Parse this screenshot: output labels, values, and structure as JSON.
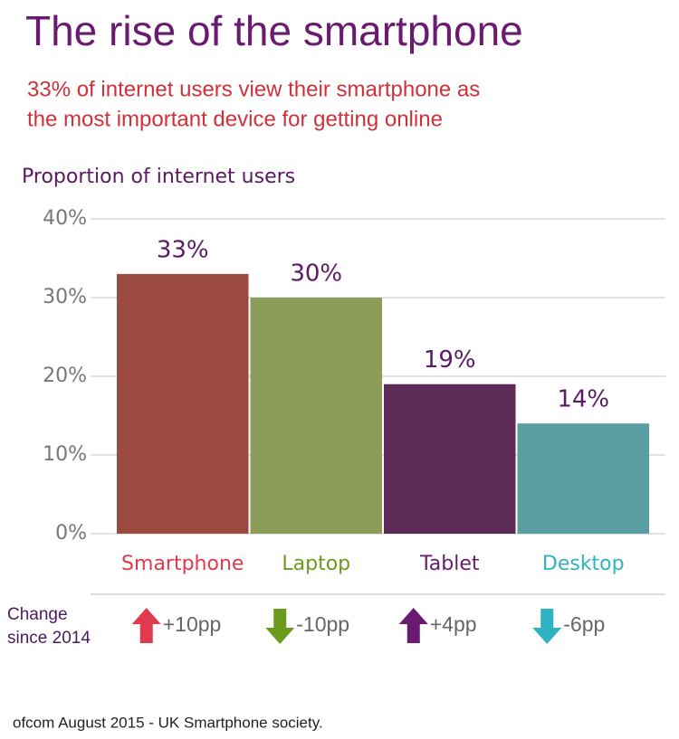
{
  "chart_data": {
    "type": "bar",
    "title": "The rise of the smartphone",
    "subtitle": [
      "33% of internet users view their smartphone as",
      "the most important device for getting online"
    ],
    "y_label": "Proportion of internet users",
    "categories": [
      "Smartphone",
      "Laptop",
      "Tablet",
      "Desktop"
    ],
    "values": [
      33,
      30,
      19,
      14
    ],
    "value_labels": [
      "33%",
      "30%",
      "19%",
      "14%"
    ],
    "colors": [
      "#9a4a3e",
      "#8e9c5a",
      "#5e2a56",
      "#5a9ea4"
    ],
    "label_colors": [
      "#e03a4e",
      "#6c9a1e",
      "#6a1a70",
      "#2fb3c2"
    ],
    "ylim": [
      0,
      40
    ],
    "yticks": [
      {
        "value": 0,
        "label": "0%"
      },
      {
        "value": 10,
        "label": "10%"
      },
      {
        "value": 20,
        "label": "20%"
      },
      {
        "value": 30,
        "label": "30%"
      },
      {
        "value": 40,
        "label": "40%"
      }
    ],
    "grid": true,
    "change_label": [
      "Change",
      "since 2014"
    ],
    "changes": [
      {
        "value": 10,
        "label": "+10pp"
      },
      {
        "value": -10,
        "label": "-10pp"
      },
      {
        "value": 4,
        "label": "+4pp"
      },
      {
        "value": -6,
        "label": "-6pp"
      }
    ],
    "source": "ofcom August 2015 - UK Smartphone society."
  }
}
